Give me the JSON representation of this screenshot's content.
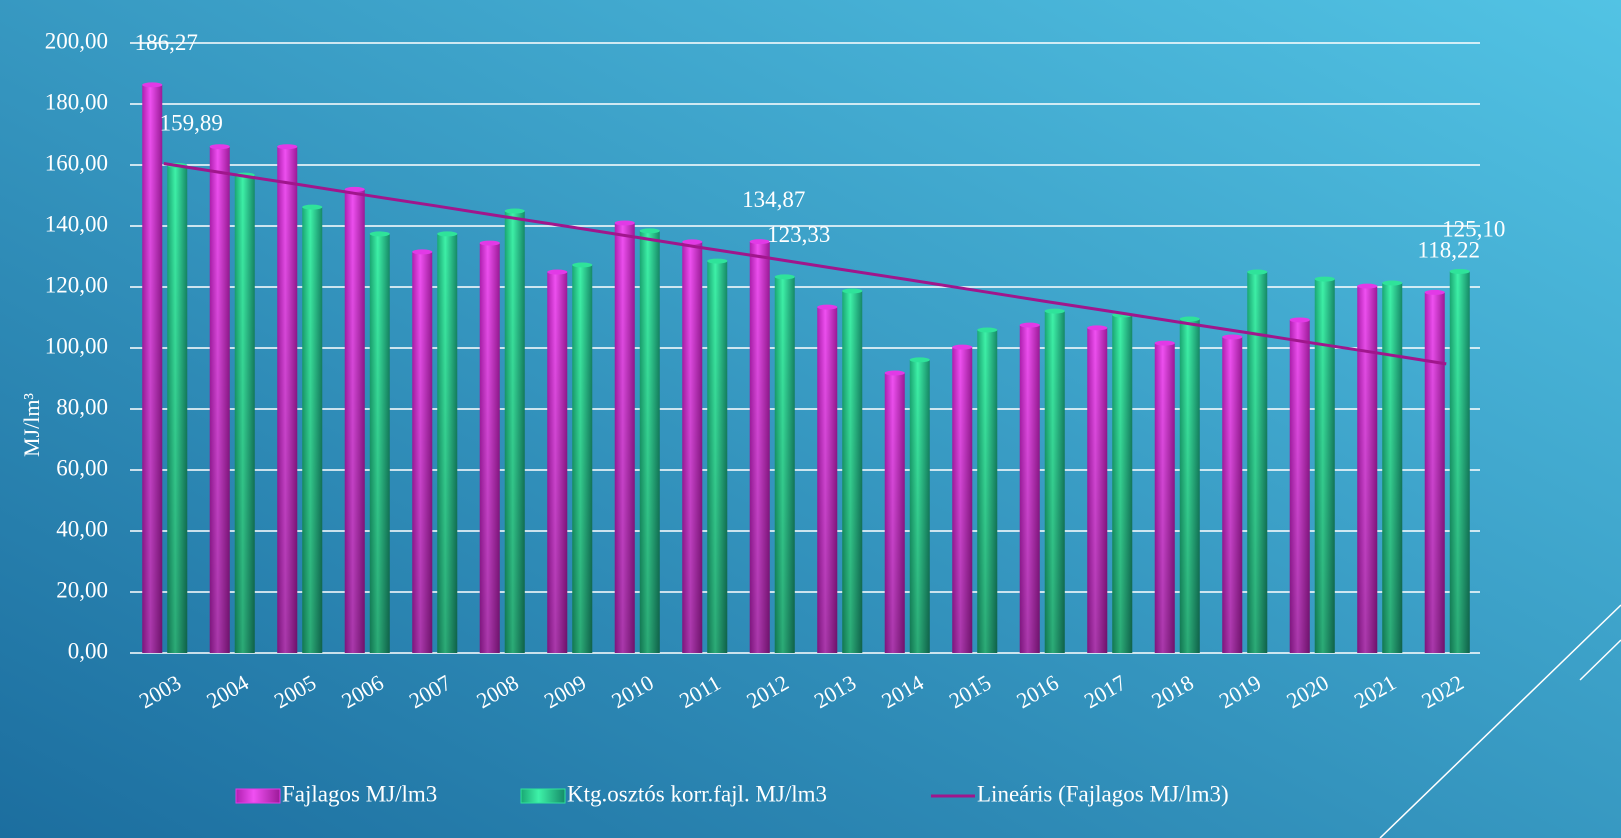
{
  "chart_data": {
    "type": "bar",
    "y_label": "MJ/lm³",
    "categories": [
      "2003",
      "2004",
      "2005",
      "2006",
      "2007",
      "2008",
      "2009",
      "2010",
      "2011",
      "2012",
      "2013",
      "2014",
      "2015",
      "2016",
      "2017",
      "2018",
      "2019",
      "2020",
      "2021",
      "2022"
    ],
    "series": [
      {
        "name": "Fajlagos MJ/lm3",
        "color": "#e23ae6",
        "values": [
          186.27,
          166,
          166,
          152,
          131.5,
          134.4,
          124.9,
          141,
          134.8,
          134.87,
          113.4,
          91.8,
          100.3,
          107.5,
          106.6,
          101.6,
          103.6,
          109.2,
          120.3,
          118.22
        ],
        "value_labels": [
          "186,27",
          null,
          null,
          null,
          null,
          null,
          null,
          null,
          null,
          "134,87",
          null,
          null,
          null,
          null,
          null,
          null,
          null,
          null,
          null,
          "118,22"
        ]
      },
      {
        "name": "Ktg.osztós korr.fajl. MJ/lm3",
        "color": "#2fe39a",
        "values": [
          159.89,
          156.7,
          146.2,
          137.4,
          137.4,
          144.9,
          127.2,
          138.4,
          128.5,
          123.33,
          118.7,
          96.1,
          105.9,
          112.1,
          110.8,
          109.5,
          124.9,
          122.6,
          121.3,
          125.1
        ],
        "value_labels": [
          "159,89",
          null,
          null,
          null,
          null,
          null,
          null,
          null,
          null,
          "123,33",
          null,
          null,
          null,
          null,
          null,
          null,
          null,
          null,
          null,
          "125,10"
        ]
      },
      {
        "name": "Lineáris (Fajlagos MJ/lm3)",
        "color": "#a0168c",
        "type": "line",
        "values": [
          160.5,
          157.0,
          153.6,
          150.1,
          146.7,
          143.2,
          139.8,
          136.3,
          132.8,
          129.4,
          125.9,
          122.5,
          119.0,
          115.5,
          112.1,
          108.6,
          105.2,
          101.7,
          98.3,
          94.8
        ]
      }
    ],
    "ylim": [
      0,
      200
    ],
    "yticks": [
      {
        "value": 0,
        "label": "0,00"
      },
      {
        "value": 20,
        "label": "20,00"
      },
      {
        "value": 40,
        "label": "40,00"
      },
      {
        "value": 60,
        "label": "60,00"
      },
      {
        "value": 80,
        "label": "80,00"
      },
      {
        "value": 100,
        "label": "100,00"
      },
      {
        "value": 120,
        "label": "120,00"
      },
      {
        "value": 140,
        "label": "140,00"
      },
      {
        "value": 160,
        "label": "160,00"
      },
      {
        "value": 180,
        "label": "180,00"
      },
      {
        "value": 200,
        "label": "200,00"
      }
    ],
    "grid": true,
    "legend": "bottom"
  }
}
